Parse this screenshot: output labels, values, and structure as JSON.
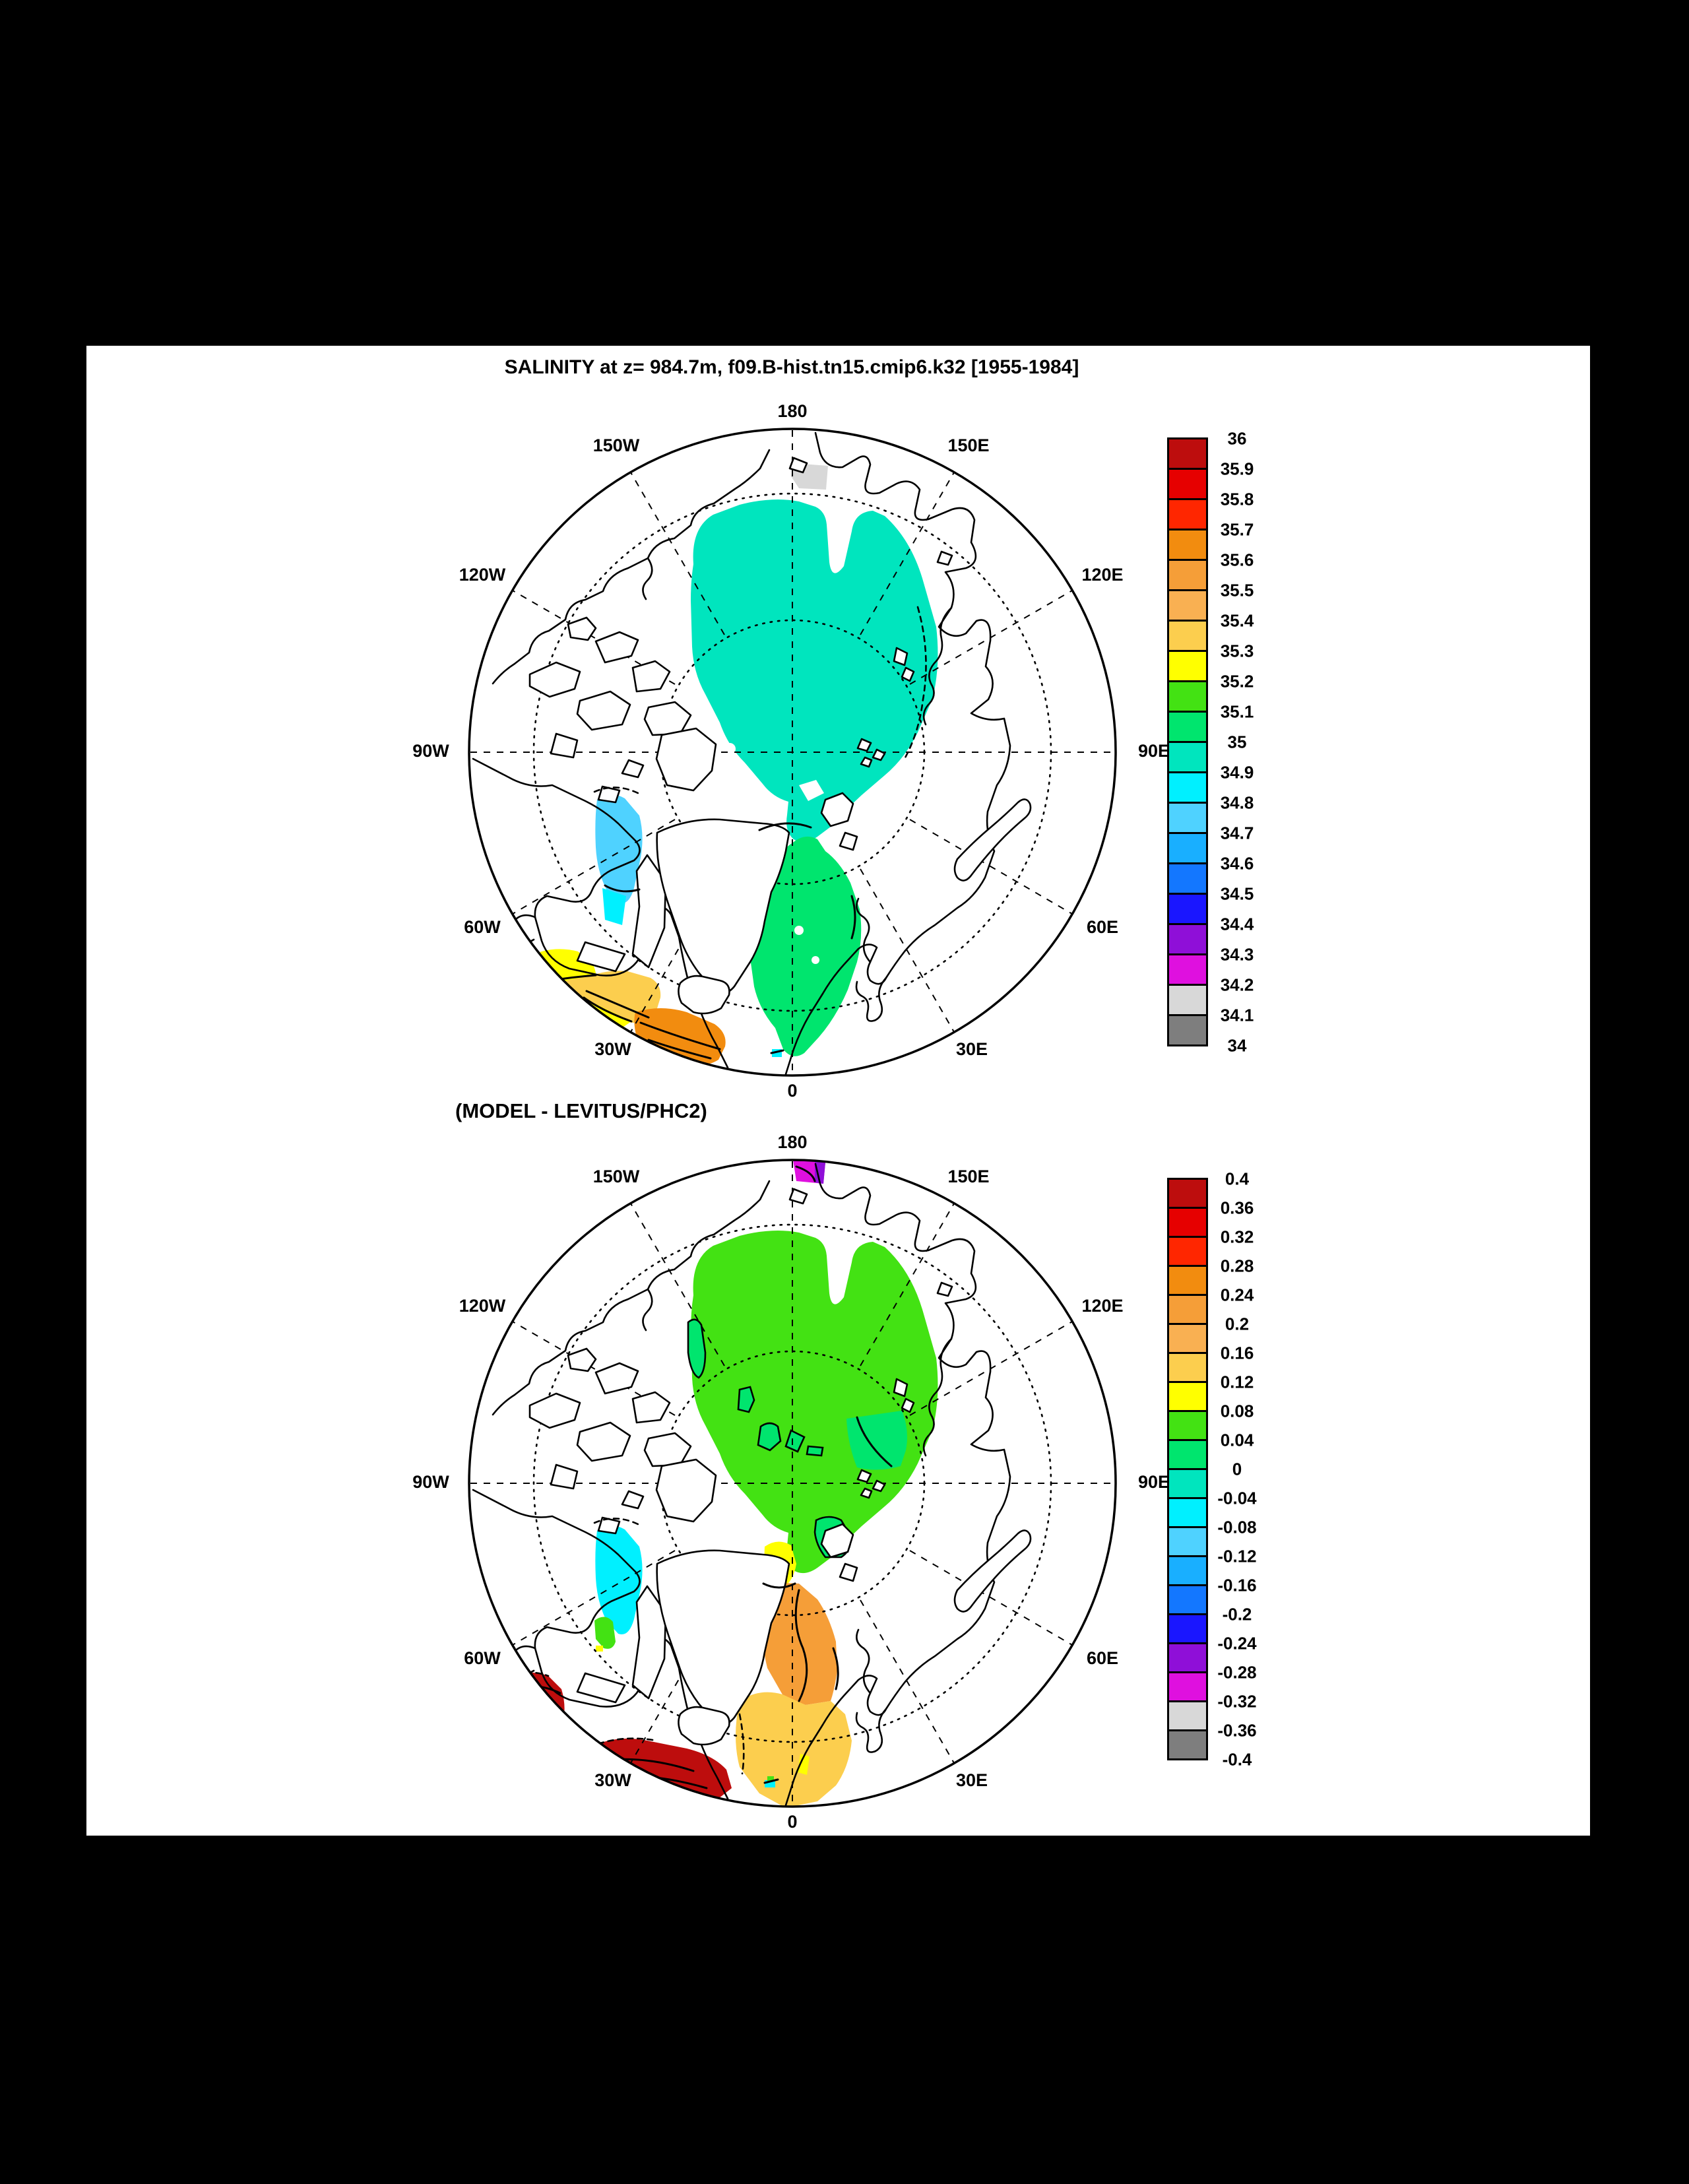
{
  "figure": {
    "background_color": "#000000",
    "panel_color": "#ffffff",
    "title_top": "SALINITY at z= 984.7m, f09.B-hist.tn15.cmip6.k32 [1955-1984]",
    "title_bottom": "(MODEL - LEVITUS/PHC2)"
  },
  "maps": [
    {
      "name": "salinity-field-map",
      "projection": "north-polar-stereographic",
      "ring_labels": [
        "180",
        "150W",
        "150E",
        "120W",
        "120E",
        "90W",
        "90E",
        "60W",
        "60E",
        "30W",
        "30E",
        "0"
      ]
    },
    {
      "name": "model-minus-observation-map",
      "projection": "north-polar-stereographic",
      "ring_labels": [
        "180",
        "150W",
        "150E",
        "120W",
        "120E",
        "90W",
        "90E",
        "60W",
        "60E",
        "30W",
        "30E",
        "0"
      ]
    }
  ],
  "colorbars": [
    {
      "name": "salinity-scale",
      "ticks": [
        "36",
        "35.9",
        "35.8",
        "35.7",
        "35.6",
        "35.5",
        "35.4",
        "35.3",
        "35.2",
        "35.1",
        "35",
        "34.9",
        "34.8",
        "34.7",
        "34.6",
        "34.5",
        "34.4",
        "34.3",
        "34.2",
        "34.1",
        "34"
      ],
      "colors": [
        "#BD0D0D",
        "#E60000",
        "#FF2600",
        "#F28C0F",
        "#F59E38",
        "#F9B052",
        "#FCCE4E",
        "#FFFF00",
        "#43E213",
        "#00E56E",
        "#00E5BE",
        "#00F0FF",
        "#4FD2FF",
        "#19AFFF",
        "#1377FF",
        "#1A16FF",
        "#8F0FD8",
        "#DF10DF",
        "#D8D8D8",
        "#7E7E7E"
      ]
    },
    {
      "name": "difference-scale",
      "ticks": [
        "0.4",
        "0.36",
        "0.32",
        "0.28",
        "0.24",
        "0.2",
        "0.16",
        "0.12",
        "0.08",
        "0.04",
        "0",
        "-0.04",
        "-0.08",
        "-0.12",
        "-0.16",
        "-0.2",
        "-0.24",
        "-0.28",
        "-0.32",
        "-0.36",
        "-0.4"
      ],
      "colors": [
        "#BD0D0D",
        "#E60000",
        "#FF2600",
        "#F28C0F",
        "#F59E38",
        "#F9B052",
        "#FCCE4E",
        "#FFFF00",
        "#43E213",
        "#00E56E",
        "#00E5BE",
        "#00F0FF",
        "#4FD2FF",
        "#19AFFF",
        "#1377FF",
        "#1A16FF",
        "#8F0FD8",
        "#DF10DF",
        "#D8D8D8",
        "#7E7E7E"
      ]
    }
  ],
  "chart_data": [
    {
      "type": "heatmap",
      "title": "SALINITY at z= 984.7m, f09.B-hist.tn15.cmip6.k32 [1955-1984]",
      "projection": "north-polar-stereographic",
      "variable": "salinity",
      "depth_m": 984.7,
      "period": "1955-1984",
      "scale_range": [
        34,
        36
      ],
      "scale_step": 0.1,
      "legend_position": "right",
      "meridian_label_step_deg": 30,
      "dotted_latitude_circles": 2,
      "regions": [
        {
          "area": "central Arctic basin",
          "value_range": [
            34.9,
            35.0
          ]
        },
        {
          "area": "Greenland-Norwegian Seas down to 0 meridian",
          "value_range": [
            35.0,
            35.1
          ]
        },
        {
          "area": "Foxe Basin (Canadian Archipelago)",
          "value_range": [
            34.7,
            34.8
          ]
        },
        {
          "area": "Foxe Basin southern tip",
          "value_range": [
            34.8,
            34.9
          ]
        },
        {
          "area": "Baffin/Labrador edge near 60W",
          "value_range": [
            35.2,
            35.4
          ]
        },
        {
          "area": "southwest of Iceland near 30W",
          "value_range": [
            35.3,
            35.4
          ]
        },
        {
          "area": "south of Iceland ridge band",
          "value_range": [
            35.5,
            35.7
          ]
        },
        {
          "area": "patch at map edge near 180",
          "value_range": [
            34.1,
            34.2
          ]
        }
      ]
    },
    {
      "type": "heatmap",
      "title": "(MODEL - LEVITUS/PHC2)",
      "projection": "north-polar-stereographic",
      "variable": "salinity difference (model minus Levitus/PHC2)",
      "scale_range": [
        -0.4,
        0.4
      ],
      "scale_step": 0.04,
      "legend_position": "right",
      "meridian_label_step_deg": 30,
      "dotted_latitude_circles": 2,
      "regions": [
        {
          "area": "central Arctic basin",
          "value_range": [
            0.04,
            0.08
          ]
        },
        {
          "area": "contoured pockets inside central basin and Siberian side",
          "value_range": [
            0.0,
            0.04
          ]
        },
        {
          "area": "Foxe Basin (Canadian Archipelago)",
          "value_range": [
            -0.08,
            -0.04
          ]
        },
        {
          "area": "Labrador Sea edge near 60W",
          "value_range": [
            0.36,
            0.4
          ]
        },
        {
          "area": "south of Iceland near 30W",
          "value_range": [
            0.36,
            0.4
          ]
        },
        {
          "area": "Fram Strait patch",
          "value_range": [
            0.08,
            0.12
          ]
        },
        {
          "area": "Greenland Sea",
          "value_range": [
            0.16,
            0.24
          ]
        },
        {
          "area": "Norwegian Sea toward 0 meridian",
          "value_range": [
            0.12,
            0.16
          ]
        },
        {
          "area": "patch at map edge near 180",
          "value_range": [
            -0.32,
            -0.28
          ]
        }
      ]
    }
  ]
}
